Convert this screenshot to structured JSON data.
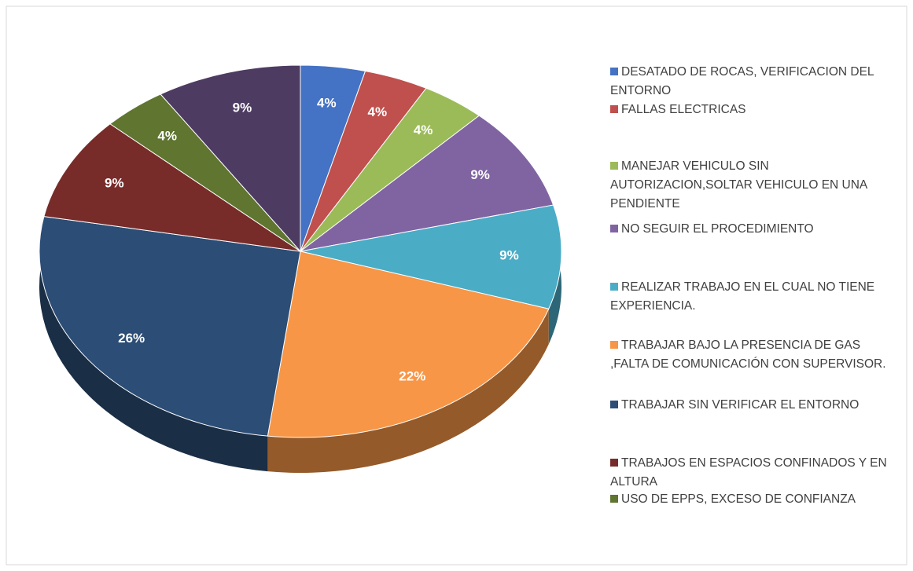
{
  "chart_data": {
    "type": "pie",
    "categories": [
      "DESATADO DE ROCAS, VERIFICACION DEL ENTORNO",
      "FALLAS ELECTRICAS",
      "MANEJAR VEHICULO SIN AUTORIZACION,SOLTAR VEHICULO EN UNA PENDIENTE",
      "NO SEGUIR EL PROCEDIMIENTO",
      "REALIZAR TRABAJO EN EL CUAL NO TIENE EXPERIENCIA.",
      "TRABAJAR BAJO LA PRESENCIA DE GAS ,FALTA DE COMUNICACIÓN CON SUPERVISOR.",
      "TRABAJAR SIN VERIFICAR EL ENTORNO",
      "TRABAJOS EN ESPACIOS CONFINADOS Y EN ALTURA",
      "USO DE EPPS, EXCESO DE CONFIANZA",
      null
    ],
    "values": [
      4,
      4,
      4,
      9,
      9,
      22,
      26,
      9,
      4,
      9
    ],
    "value_labels": [
      "4%",
      "4%",
      "4%",
      "9%",
      "9%",
      "22%",
      "26%",
      "9%",
      "4%",
      "9%"
    ],
    "colors": [
      "#4472c4",
      "#c0504d",
      "#9bbb59",
      "#8064a2",
      "#4bacc6",
      "#f79646",
      "#2c4d75",
      "#772c2a",
      "#5f7530",
      "#4d3b62"
    ]
  }
}
